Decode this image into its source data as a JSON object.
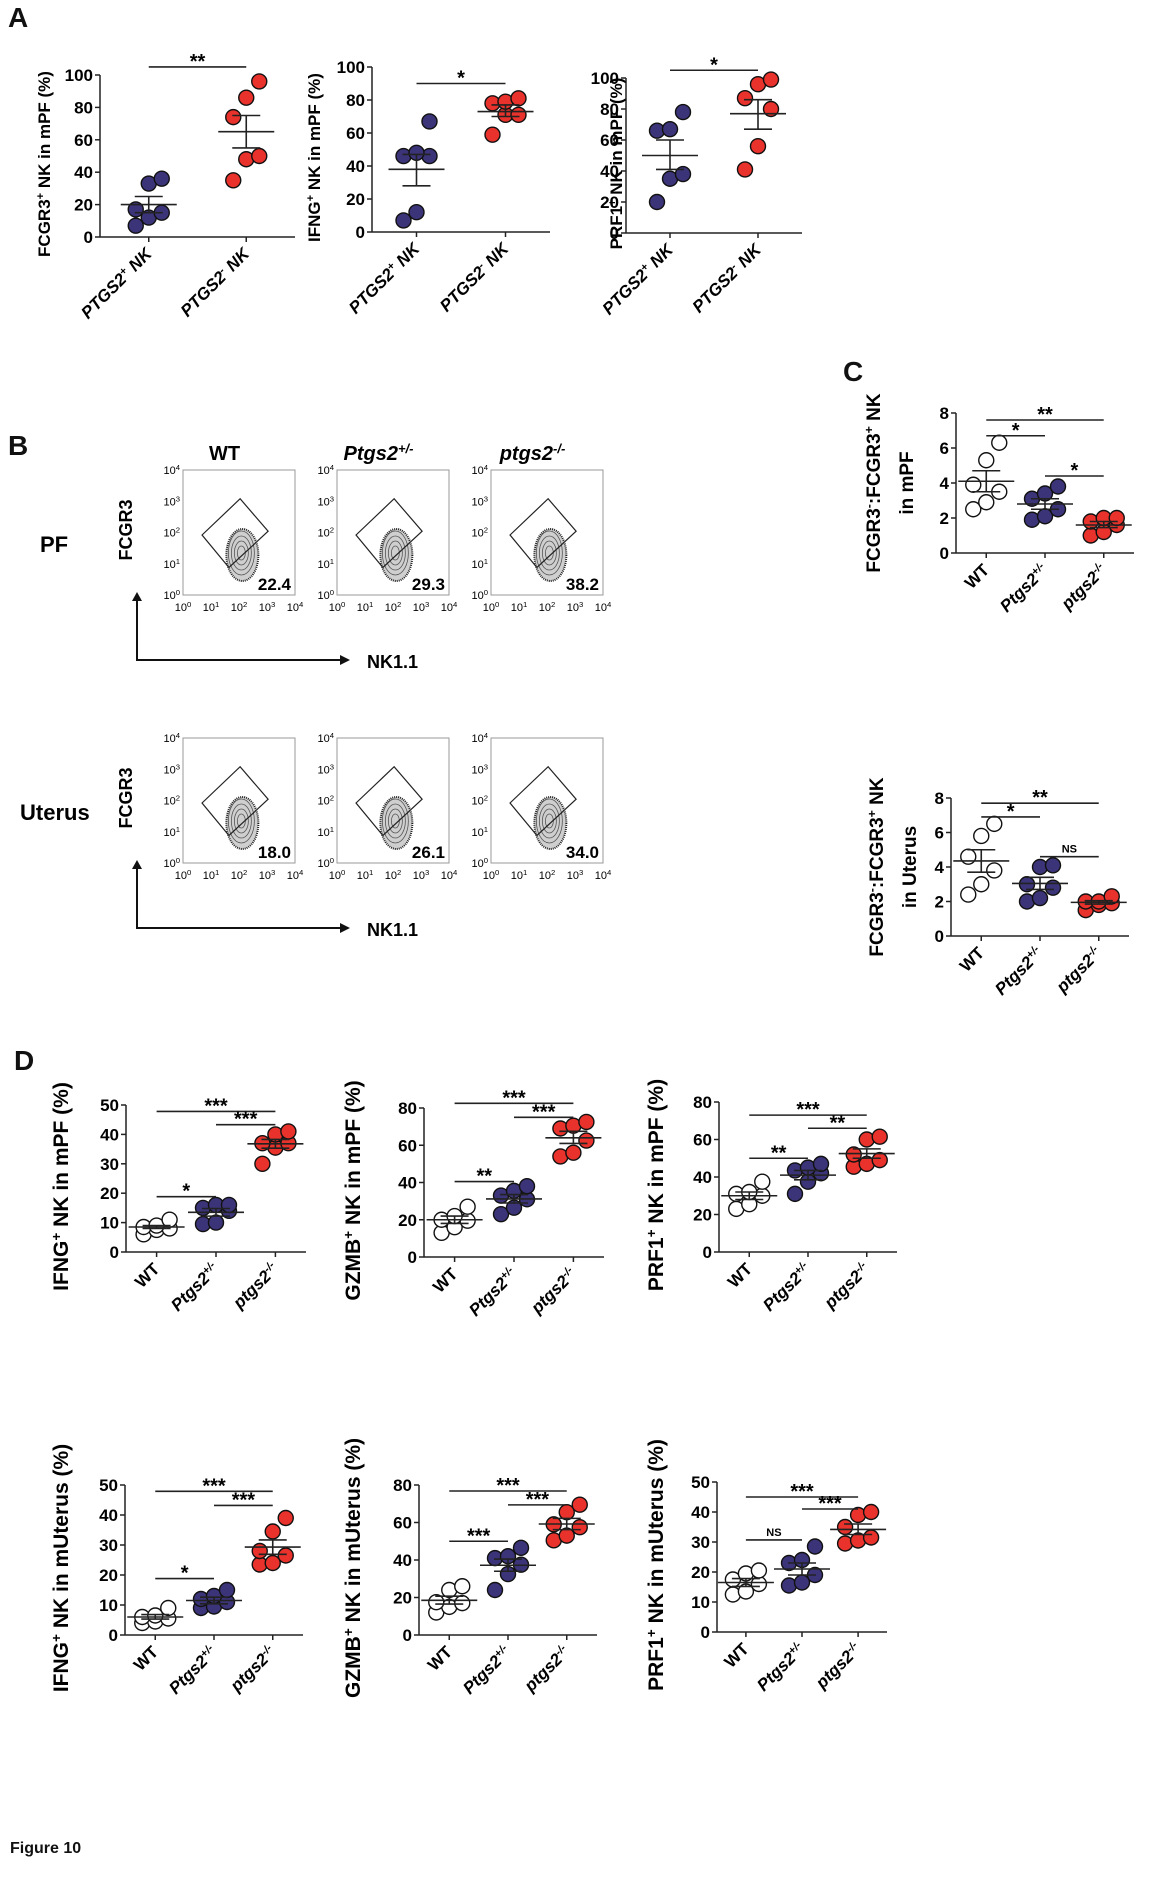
{
  "figure_caption": "Figure 10",
  "panel_letters": {
    "A": "A",
    "B": "B",
    "C": "C",
    "D": "D"
  },
  "colors": {
    "group_pos": "#3b3479",
    "group_neg": "#e8322b",
    "wt": "#ffffff",
    "axis": "#222222"
  },
  "flow": {
    "columns": [
      "WT",
      "Ptgs2+/-",
      "ptgs2-/-"
    ],
    "rows": [
      "PF",
      "Uterus"
    ],
    "x_axis_label": "NK1.1",
    "y_axis_label": "FCGR3",
    "ticks": [
      "10^0",
      "10^1",
      "10^2",
      "10^3",
      "10^4"
    ],
    "gate_percent": {
      "PF": [
        22.4,
        29.3,
        38.2
      ],
      "Uterus": [
        18.0,
        26.1,
        34.0
      ]
    }
  },
  "chart_data": [
    {
      "id": "A1",
      "type": "scatter",
      "title": "",
      "ylabel": "FCGR3+ NK in mPF (%)",
      "xlabel": "",
      "categories": [
        "PTGS2+ NK",
        "PTGS2- NK"
      ],
      "ylim": [
        0,
        100
      ],
      "yticks": [
        0,
        20,
        40,
        60,
        80,
        100
      ],
      "series": [
        {
          "name": "PTGS2+ NK",
          "fill": "pos",
          "values": [
            7,
            12,
            15,
            17,
            33,
            36
          ],
          "mean": 20,
          "sem": [
            15,
            25
          ]
        },
        {
          "name": "PTGS2- NK",
          "fill": "neg",
          "values": [
            35,
            48,
            50,
            74,
            86,
            96
          ],
          "mean": 65,
          "sem": [
            55,
            75
          ]
        }
      ],
      "significance": [
        {
          "from": 0,
          "to": 1,
          "label": "**",
          "y": 105
        }
      ]
    },
    {
      "id": "A2",
      "type": "scatter",
      "title": "",
      "ylabel": "IFNG+ NK in mPF (%)",
      "xlabel": "",
      "categories": [
        "PTGS2+ NK",
        "PTGS2- NK"
      ],
      "ylim": [
        0,
        100
      ],
      "yticks": [
        0,
        20,
        40,
        60,
        80,
        100
      ],
      "series": [
        {
          "name": "PTGS2+ NK",
          "fill": "pos",
          "values": [
            7,
            12,
            46,
            46,
            48,
            67
          ],
          "mean": 38,
          "sem": [
            28,
            47
          ]
        },
        {
          "name": "PTGS2- NK",
          "fill": "neg",
          "values": [
            59,
            71,
            71,
            78,
            79,
            81
          ],
          "mean": 73,
          "sem": [
            70,
            77
          ]
        }
      ],
      "significance": [
        {
          "from": 0,
          "to": 1,
          "label": "*",
          "y": 90
        }
      ]
    },
    {
      "id": "A3",
      "type": "scatter",
      "title": "",
      "ylabel": "PRF1+ NK in mPF (%)",
      "xlabel": "",
      "categories": [
        "PTGS2+ NK",
        "PTGS2- NK"
      ],
      "ylim": [
        0,
        100
      ],
      "yticks": [
        0,
        20,
        40,
        60,
        80,
        100
      ],
      "series": [
        {
          "name": "PTGS2+ NK",
          "fill": "pos",
          "values": [
            20,
            35,
            38,
            66,
            67,
            78
          ],
          "mean": 50,
          "sem": [
            41,
            60
          ]
        },
        {
          "name": "PTGS2- NK",
          "fill": "neg",
          "values": [
            41,
            56,
            80,
            87,
            96,
            99
          ],
          "mean": 77,
          "sem": [
            67,
            86
          ]
        }
      ],
      "significance": [
        {
          "from": 0,
          "to": 1,
          "label": "*",
          "y": 105
        }
      ]
    },
    {
      "id": "C1",
      "type": "scatter",
      "title": "",
      "ylabel": "FCGR3-:FCGR3+ NK in mPF",
      "xlabel": "",
      "categories": [
        "WT",
        "Ptgs2+/-",
        "ptgs2-/-"
      ],
      "ylim": [
        0,
        8
      ],
      "yticks": [
        0,
        2,
        4,
        6,
        8
      ],
      "series": [
        {
          "name": "WT",
          "fill": "wt",
          "values": [
            2.5,
            2.9,
            3.5,
            3.9,
            5.3,
            6.3
          ],
          "mean": 4.1,
          "sem": [
            3.5,
            4.7
          ]
        },
        {
          "name": "Ptgs2+/-",
          "fill": "pos",
          "values": [
            1.9,
            2.1,
            2.5,
            3.1,
            3.4,
            3.8
          ],
          "mean": 2.8,
          "sem": [
            2.5,
            3.1
          ]
        },
        {
          "name": "ptgs2-/-",
          "fill": "neg",
          "values": [
            1.0,
            1.2,
            1.6,
            1.8,
            2.0,
            2.0
          ],
          "mean": 1.6,
          "sem": [
            1.45,
            1.8
          ]
        }
      ],
      "significance": [
        {
          "from": 0,
          "to": 2,
          "label": "**",
          "y": 7.6
        },
        {
          "from": 0,
          "to": 1,
          "label": "*",
          "y": 6.7
        },
        {
          "from": 1,
          "to": 2,
          "label": "*",
          "y": 4.4
        }
      ]
    },
    {
      "id": "C2",
      "type": "scatter",
      "title": "",
      "ylabel": "FCGR3-:FCGR3+ NK in Uterus",
      "xlabel": "",
      "categories": [
        "WT",
        "Ptgs2+/-",
        "ptgs2-/-"
      ],
      "ylim": [
        0,
        8
      ],
      "yticks": [
        0,
        2,
        4,
        6,
        8
      ],
      "series": [
        {
          "name": "WT",
          "fill": "wt",
          "values": [
            2.4,
            3.0,
            3.8,
            4.6,
            5.8,
            6.5
          ],
          "mean": 4.35,
          "sem": [
            3.7,
            5.0
          ]
        },
        {
          "name": "Ptgs2+/-",
          "fill": "pos",
          "values": [
            2.0,
            2.2,
            2.8,
            3.0,
            4.0,
            4.1
          ],
          "mean": 3.05,
          "sem": [
            2.7,
            3.4
          ]
        },
        {
          "name": "ptgs2-/-",
          "fill": "neg",
          "values": [
            1.5,
            1.8,
            1.9,
            2.0,
            2.0,
            2.3
          ],
          "mean": 1.95,
          "sem": [
            1.85,
            2.05
          ]
        }
      ],
      "significance": [
        {
          "from": 0,
          "to": 2,
          "label": "**",
          "y": 7.7
        },
        {
          "from": 0,
          "to": 1,
          "label": "*",
          "y": 6.9
        },
        {
          "from": 1,
          "to": 2,
          "label": "NS",
          "y": 4.6
        }
      ]
    },
    {
      "id": "D1",
      "type": "scatter",
      "title": "",
      "ylabel": "IFNG+ NK in mPF (%)",
      "xlabel": "",
      "categories": [
        "WT",
        "Ptgs2+/-",
        "ptgs2-/-"
      ],
      "ylim": [
        0,
        50
      ],
      "yticks": [
        0,
        10,
        20,
        30,
        40,
        50
      ],
      "series": [
        {
          "name": "WT",
          "fill": "wt",
          "values": [
            6,
            7.5,
            8,
            8.5,
            9,
            11
          ],
          "mean": 8.5,
          "sem": [
            8,
            9
          ]
        },
        {
          "name": "Ptgs2+/-",
          "fill": "pos",
          "values": [
            9.5,
            10,
            14,
            15,
            16,
            16
          ],
          "mean": 13.5,
          "sem": [
            12.2,
            14.8
          ]
        },
        {
          "name": "ptgs2-/-",
          "fill": "neg",
          "values": [
            30,
            35.5,
            37,
            37,
            40,
            41
          ],
          "mean": 36.8,
          "sem": [
            35.3,
            38.3
          ]
        }
      ],
      "significance": [
        {
          "from": 0,
          "to": 2,
          "label": "***",
          "y": 47.8
        },
        {
          "from": 1,
          "to": 2,
          "label": "***",
          "y": 43.3
        },
        {
          "from": 0,
          "to": 1,
          "label": "*",
          "y": 18.8
        }
      ]
    },
    {
      "id": "D2",
      "type": "scatter",
      "title": "",
      "ylabel": "GZMB+ NK in mPF (%)",
      "xlabel": "",
      "categories": [
        "WT",
        "Ptgs2+/-",
        "ptgs2-/-"
      ],
      "ylim": [
        0,
        80
      ],
      "yticks": [
        0,
        20,
        40,
        60,
        80
      ],
      "series": [
        {
          "name": "WT",
          "fill": "wt",
          "values": [
            13,
            16,
            19.5,
            20,
            22,
            27
          ],
          "mean": 20,
          "sem": [
            18,
            22
          ]
        },
        {
          "name": "Ptgs2+/-",
          "fill": "pos",
          "values": [
            23,
            26.5,
            31,
            33,
            35.5,
            38
          ],
          "mean": 31.2,
          "sem": [
            29,
            33.5
          ]
        },
        {
          "name": "ptgs2-/-",
          "fill": "neg",
          "values": [
            54,
            56,
            62.5,
            69,
            70.5,
            72.5
          ],
          "mean": 64,
          "sem": [
            61,
            67.5
          ]
        }
      ],
      "significance": [
        {
          "from": 0,
          "to": 2,
          "label": "***",
          "y": 82.5
        },
        {
          "from": 1,
          "to": 2,
          "label": "***",
          "y": 75
        },
        {
          "from": 0,
          "to": 1,
          "label": "**",
          "y": 40.5
        }
      ]
    },
    {
      "id": "D3",
      "type": "scatter",
      "title": "",
      "ylabel": "PRF1+ NK in mPF (%)",
      "xlabel": "",
      "categories": [
        "WT",
        "Ptgs2+/-",
        "ptgs2-/-"
      ],
      "ylim": [
        0,
        80
      ],
      "yticks": [
        0,
        20,
        40,
        60,
        80
      ],
      "series": [
        {
          "name": "WT",
          "fill": "wt",
          "values": [
            23,
            25.5,
            30,
            31,
            32,
            37.5
          ],
          "mean": 30,
          "sem": [
            28,
            32
          ]
        },
        {
          "name": "Ptgs2+/-",
          "fill": "pos",
          "values": [
            31,
            37.5,
            42,
            43.5,
            45,
            47
          ],
          "mean": 41,
          "sem": [
            38.5,
            43.5
          ]
        },
        {
          "name": "ptgs2-/-",
          "fill": "neg",
          "values": [
            45.5,
            47,
            49,
            52,
            60,
            61.5
          ],
          "mean": 52.5,
          "sem": [
            50,
            55
          ]
        }
      ],
      "significance": [
        {
          "from": 0,
          "to": 2,
          "label": "***",
          "y": 73
        },
        {
          "from": 1,
          "to": 2,
          "label": "**",
          "y": 66
        },
        {
          "from": 0,
          "to": 1,
          "label": "**",
          "y": 50
        }
      ]
    },
    {
      "id": "D4",
      "type": "scatter",
      "title": "",
      "ylabel": "IFNG+ NK in mUterus (%)",
      "xlabel": "",
      "categories": [
        "WT",
        "Ptgs2+/-",
        "ptgs2-/-"
      ],
      "ylim": [
        0,
        50
      ],
      "yticks": [
        0,
        10,
        20,
        30,
        40,
        50
      ],
      "series": [
        {
          "name": "WT",
          "fill": "wt",
          "values": [
            4,
            4.5,
            5.5,
            6,
            6.5,
            9
          ],
          "mean": 6,
          "sem": [
            5.3,
            6.8
          ]
        },
        {
          "name": "Ptgs2+/-",
          "fill": "pos",
          "values": [
            9,
            9.5,
            11,
            12,
            13,
            15
          ],
          "mean": 11.5,
          "sem": [
            10.4,
            12.6
          ]
        },
        {
          "name": "ptgs2-/-",
          "fill": "neg",
          "values": [
            23.5,
            24,
            26.5,
            28,
            34.5,
            39
          ],
          "mean": 29.3,
          "sem": [
            26.9,
            31.7
          ]
        }
      ],
      "significance": [
        {
          "from": 0,
          "to": 2,
          "label": "***",
          "y": 47.9
        },
        {
          "from": 1,
          "to": 2,
          "label": "***",
          "y": 43.2
        },
        {
          "from": 0,
          "to": 1,
          "label": "*",
          "y": 18.8
        }
      ]
    },
    {
      "id": "D5",
      "type": "scatter",
      "title": "",
      "ylabel": "GZMB+ NK in mUterus (%)",
      "xlabel": "",
      "categories": [
        "WT",
        "Ptgs2+/-",
        "ptgs2-/-"
      ],
      "ylim": [
        0,
        80
      ],
      "yticks": [
        0,
        20,
        40,
        60,
        80
      ],
      "series": [
        {
          "name": "WT",
          "fill": "wt",
          "values": [
            12,
            15,
            17,
            17.5,
            24,
            26
          ],
          "mean": 18.5,
          "sem": [
            16.5,
            20.7
          ]
        },
        {
          "name": "Ptgs2+/-",
          "fill": "pos",
          "values": [
            24,
            32.5,
            37.5,
            41,
            42,
            46.5
          ],
          "mean": 37.2,
          "sem": [
            34,
            40.5
          ]
        },
        {
          "name": "ptgs2-/-",
          "fill": "neg",
          "values": [
            50.5,
            53,
            57.5,
            59,
            65.5,
            69.5
          ],
          "mean": 59.2,
          "sem": [
            56.2,
            62.2
          ]
        }
      ],
      "significance": [
        {
          "from": 0,
          "to": 2,
          "label": "***",
          "y": 76.8
        },
        {
          "from": 1,
          "to": 2,
          "label": "***",
          "y": 69.4
        },
        {
          "from": 0,
          "to": 1,
          "label": "***",
          "y": 50
        }
      ]
    },
    {
      "id": "D6",
      "type": "scatter",
      "title": "",
      "ylabel": "PRF1+ NK in mUterus (%)",
      "xlabel": "",
      "categories": [
        "WT",
        "Ptgs2+/-",
        "ptgs2-/-"
      ],
      "ylim": [
        0,
        50
      ],
      "yticks": [
        0,
        10,
        20,
        30,
        40,
        50
      ],
      "series": [
        {
          "name": "WT",
          "fill": "wt",
          "values": [
            12.5,
            13.5,
            16,
            17.5,
            19.5,
            20.5
          ],
          "mean": 16.5,
          "sem": [
            15.2,
            17.8
          ]
        },
        {
          "name": "Ptgs2+/-",
          "fill": "pos",
          "values": [
            15.5,
            16.5,
            19,
            23,
            24,
            28.5
          ],
          "mean": 21,
          "sem": [
            19,
            23
          ]
        },
        {
          "name": "ptgs2-/-",
          "fill": "neg",
          "values": [
            29.5,
            30.5,
            31.5,
            35,
            39,
            40
          ],
          "mean": 34.2,
          "sem": [
            32.5,
            36
          ]
        }
      ],
      "significance": [
        {
          "from": 0,
          "to": 2,
          "label": "***",
          "y": 45
        },
        {
          "from": 1,
          "to": 2,
          "label": "***",
          "y": 41
        },
        {
          "from": 0,
          "to": 1,
          "label": "NS",
          "y": 30.7
        }
      ]
    }
  ]
}
